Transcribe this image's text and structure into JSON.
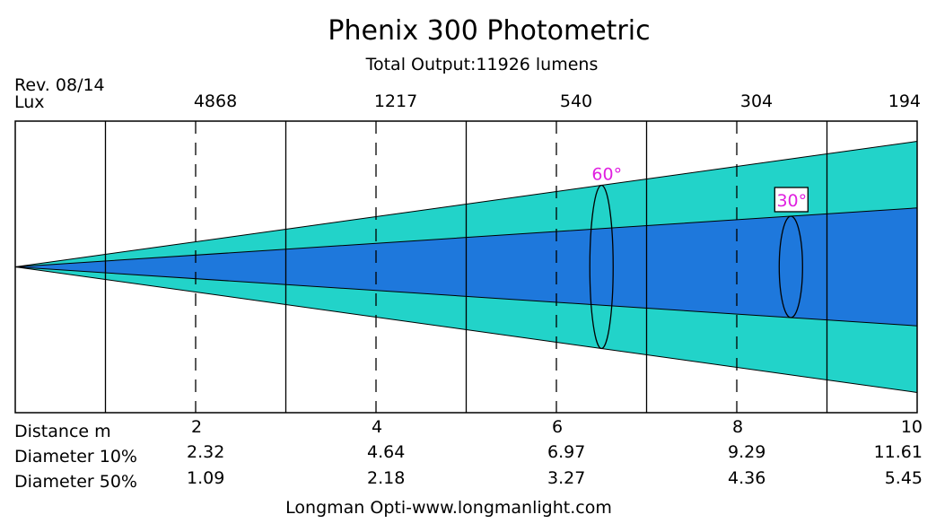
{
  "chart_data": {
    "type": "area",
    "title": "Phenix 300 Photometric",
    "subtitle": "Total Output:11926 lumens",
    "revision": "Rev. 08/14",
    "lux_label": "Lux",
    "lux": [
      {
        "x": 2,
        "label": "4868"
      },
      {
        "x": 4,
        "label": "1217"
      },
      {
        "x": 6,
        "label": "540"
      },
      {
        "x": 8,
        "label": "304"
      },
      {
        "x": 10,
        "label": "194"
      }
    ],
    "x_range": [
      0,
      10
    ],
    "grid_x": [
      1,
      3,
      5,
      7,
      9
    ],
    "dashed_x": [
      2,
      4,
      6,
      8
    ],
    "row_labels": {
      "distance": "Distance m",
      "diameter10": "Diameter 10%",
      "diameter50": "Diameter 50%"
    },
    "distances": [
      "2",
      "4",
      "6",
      "8",
      "10"
    ],
    "diameter10": [
      "2.32",
      "4.64",
      "6.97",
      "9.29",
      "11.61"
    ],
    "diameter50": [
      "1.09",
      "2.18",
      "3.27",
      "4.36",
      "5.45"
    ],
    "series": [
      {
        "name": "Diameter 10%",
        "x": [
          0,
          10
        ],
        "diameter": [
          0,
          11.61
        ],
        "color": "#22d3c9"
      },
      {
        "name": "Diameter 50%",
        "x": [
          0,
          10
        ],
        "diameter": [
          0,
          5.45
        ],
        "color": "#1e78dc"
      }
    ],
    "annotations": [
      {
        "label": "60°",
        "x": 6.5,
        "color": "#e020e0"
      },
      {
        "label": "30°",
        "x": 8.6,
        "color": "#e020e0"
      }
    ],
    "footer": "Longman Opti-www.longmanlight.com"
  }
}
